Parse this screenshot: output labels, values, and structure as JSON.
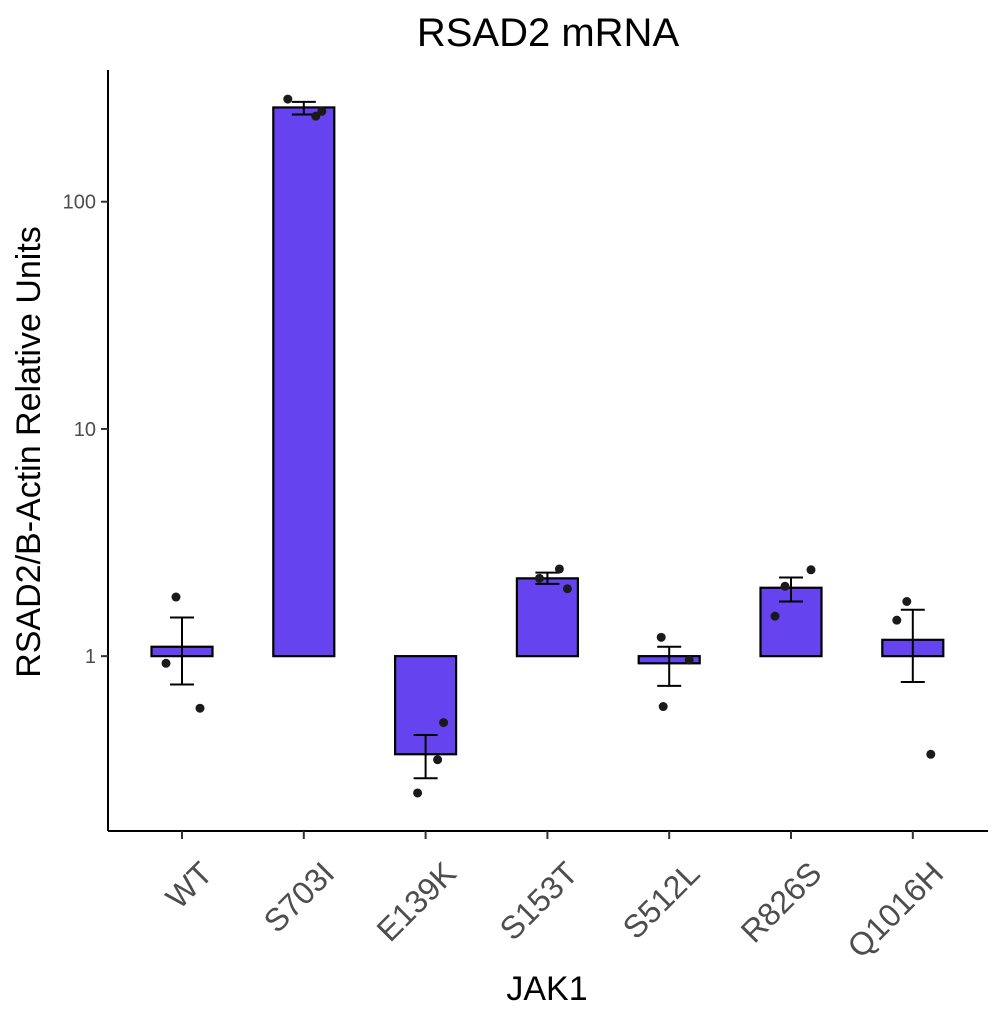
{
  "chart_data": {
    "type": "bar",
    "title": "RSAD2 mRNA",
    "xlabel": "JAK1",
    "ylabel": "RSAD2/B-Actin Relative Units",
    "y_scale": "log10",
    "ylim": [
      0.17,
      380
    ],
    "yticks": [
      1,
      10,
      100
    ],
    "ytick_labels": [
      "1",
      "10",
      "100"
    ],
    "bar_baseline": 1,
    "bar_color": "#6544f0",
    "point_color": "#1a1a1a",
    "grid": false,
    "legend": "none",
    "categories": [
      "WT",
      "S703I",
      "E139K",
      "S153T",
      "S512L",
      "R826S",
      "Q1016H"
    ],
    "values": [
      1.1,
      260,
      0.37,
      2.2,
      0.93,
      2.0,
      1.18
    ],
    "error_bars": [
      {
        "low": 0.75,
        "high": 1.48
      },
      {
        "low": 242,
        "high": 275
      },
      {
        "low": 0.29,
        "high": 0.45
      },
      {
        "low": 2.08,
        "high": 2.33
      },
      {
        "low": 0.74,
        "high": 1.1
      },
      {
        "low": 1.74,
        "high": 2.22
      },
      {
        "low": 0.77,
        "high": 1.6
      }
    ],
    "points": [
      [
        1.82,
        0.93,
        0.59
      ],
      [
        283,
        250,
        238
      ],
      [
        0.51,
        0.35,
        0.25
      ],
      [
        2.42,
        2.2,
        1.98
      ],
      [
        1.21,
        0.96,
        0.6
      ],
      [
        2.4,
        2.03,
        1.5
      ],
      [
        1.74,
        1.44,
        0.37
      ]
    ]
  }
}
